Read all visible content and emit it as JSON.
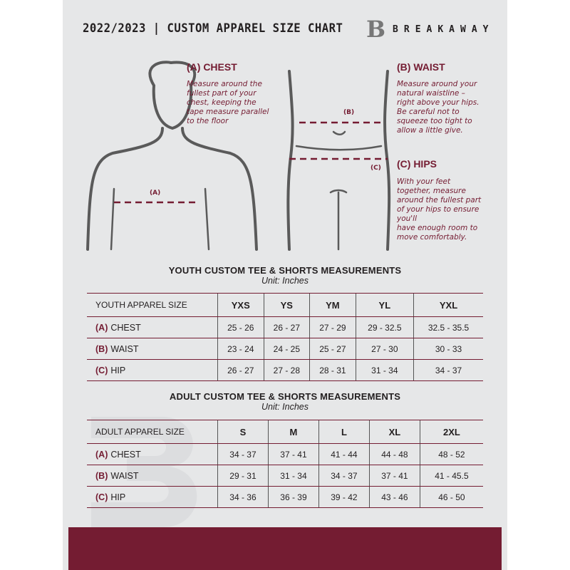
{
  "header": {
    "title": "2022/2023  |  CUSTOM APPAREL SIZE CHART",
    "brand": "BREAKAWAY",
    "logo_letter": "B"
  },
  "chest": {
    "heading": "(A) CHEST",
    "text": "Measure around the\nfullest part of your\nchest, keeping the\ntape measure parallel\nto the floor",
    "marker": "(A)"
  },
  "waist": {
    "heading": "(B) WAIST",
    "text": "Measure around your\nnatural waistline –\nright above your hips.\nBe careful not to\nsqueeze too tight to\nallow a little give.",
    "marker": "(B)"
  },
  "hips": {
    "heading": "(C) HIPS",
    "text": "With your feet\ntogether, measure\naround the fullest part\nof your hips to ensure\nyou'll\nhave enough room to\nmove comfortably.",
    "marker": "(C)"
  },
  "colors": {
    "accent": "#741c32",
    "panel": "#e6e7e8"
  },
  "youth": {
    "title": "YOUTH CUSTOM TEE & SHORTS MEASUREMENTS",
    "unit": "Unit: Inches",
    "size_label": "YOUTH APPAREL SIZE",
    "sizes": [
      "YXS",
      "YS",
      "YM",
      "YL",
      "YXL"
    ],
    "rows": [
      {
        "code": "(A)",
        "name": "CHEST",
        "values": [
          "25 - 26",
          "26 - 27",
          "27 - 29",
          "29 - 32.5",
          "32.5 - 35.5"
        ]
      },
      {
        "code": "(B)",
        "name": "WAIST",
        "values": [
          "23 - 24",
          "24 - 25",
          "25 - 27",
          "27 - 30",
          "30 - 33"
        ]
      },
      {
        "code": "(C)",
        "name": "HIP",
        "values": [
          "26 - 27",
          "27 - 28",
          "28 - 31",
          "31 - 34",
          "34 - 37"
        ]
      }
    ]
  },
  "adult": {
    "title": "ADULT CUSTOM TEE & SHORTS MEASUREMENTS",
    "unit": "Unit: Inches",
    "size_label": "ADULT APPAREL SIZE",
    "sizes": [
      "S",
      "M",
      "L",
      "XL",
      "2XL"
    ],
    "rows": [
      {
        "code": "(A)",
        "name": "CHEST",
        "values": [
          "34 - 37",
          "37 - 41",
          "41 - 44",
          "44 - 48",
          "48 - 52"
        ]
      },
      {
        "code": "(B)",
        "name": "WAIST",
        "values": [
          "29 - 31",
          "31 - 34",
          "34 - 37",
          "37 - 41",
          "41 - 45.5"
        ]
      },
      {
        "code": "(C)",
        "name": "HIP",
        "values": [
          "34 - 36",
          "36 - 39",
          "39 - 42",
          "43 - 46",
          "46 - 50"
        ]
      }
    ]
  }
}
